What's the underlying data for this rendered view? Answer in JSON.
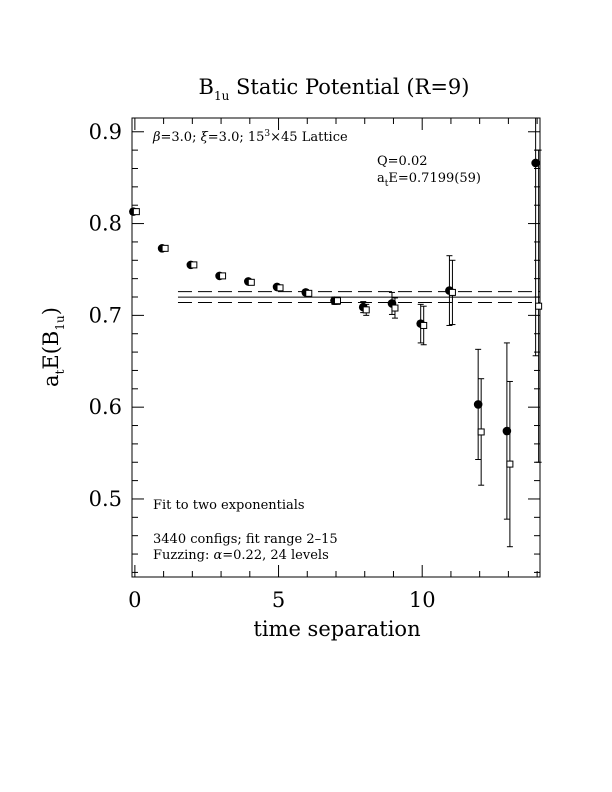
{
  "title": {
    "main": "B",
    "sub": "1u",
    "rest": " Static Potential (R=9)"
  },
  "ylabel": {
    "a": "a",
    "a_sub": "t",
    "mid": "E(B",
    "mid_sub": "1u",
    "end": ")"
  },
  "xlabel": "time separation",
  "annotations": {
    "lattice": {
      "beta": "β",
      "beta_text": "=3.0; ",
      "xi": "ξ",
      "xi_text": "=3.0; 15",
      "exp": "3",
      "rest": "×45 Lattice"
    },
    "q": "Q=0.02",
    "energy": {
      "a": "a",
      "sub": "t",
      "rest": "E=0.7199(59)"
    },
    "fit": "Fit to two exponentials",
    "configs": "3440 configs; fit range 2–15",
    "fuzz": {
      "pre": "Fuzzing: ",
      "alpha": "α",
      "rest": "=0.22, 24 levels"
    }
  },
  "chart_data": {
    "type": "scatter",
    "xlim": [
      -0.1,
      14.1
    ],
    "ylim": [
      0.415,
      0.915
    ],
    "x_ticks": [
      0,
      5,
      10
    ],
    "x_tick_labels": [
      "0",
      "5",
      "10"
    ],
    "y_ticks": [
      0.5,
      0.6,
      0.7,
      0.8,
      0.9
    ],
    "y_tick_labels": [
      "0.5",
      "0.6",
      "0.7",
      "0.8",
      "0.9"
    ],
    "fit": {
      "value": 0.7199,
      "error": 0.0059,
      "x_range": [
        1.5,
        14.1
      ]
    },
    "series": [
      {
        "marker": "filled-circle",
        "points": [
          {
            "x": 0,
            "y": 0.813,
            "err": 0.003
          },
          {
            "x": 1,
            "y": 0.773,
            "err": 0.002
          },
          {
            "x": 2,
            "y": 0.755,
            "err": 0.002
          },
          {
            "x": 3,
            "y": 0.743,
            "err": 0.002
          },
          {
            "x": 4,
            "y": 0.737,
            "err": 0.002
          },
          {
            "x": 5,
            "y": 0.731,
            "err": 0.002
          },
          {
            "x": 6,
            "y": 0.725,
            "err": 0.003
          },
          {
            "x": 7,
            "y": 0.716,
            "err": 0.004
          },
          {
            "x": 8,
            "y": 0.709,
            "err": 0.006
          },
          {
            "x": 9,
            "y": 0.713,
            "err": 0.012
          },
          {
            "x": 10,
            "y": 0.691,
            "err": 0.021
          },
          {
            "x": 11,
            "y": 0.727,
            "err": 0.038
          },
          {
            "x": 12,
            "y": 0.603,
            "err": 0.06
          },
          {
            "x": 13,
            "y": 0.574,
            "err": 0.096
          },
          {
            "x": 14,
            "y": 0.866,
            "err": 0.21
          }
        ]
      },
      {
        "marker": "open-square",
        "points": [
          {
            "x": 0,
            "y": 0.813,
            "err": 0.003
          },
          {
            "x": 1,
            "y": 0.773,
            "err": 0.002
          },
          {
            "x": 2,
            "y": 0.755,
            "err": 0.002
          },
          {
            "x": 3,
            "y": 0.743,
            "err": 0.002
          },
          {
            "x": 4,
            "y": 0.736,
            "err": 0.002
          },
          {
            "x": 5,
            "y": 0.73,
            "err": 0.002
          },
          {
            "x": 6,
            "y": 0.724,
            "err": 0.003
          },
          {
            "x": 7,
            "y": 0.716,
            "err": 0.004
          },
          {
            "x": 8,
            "y": 0.706,
            "err": 0.006
          },
          {
            "x": 9,
            "y": 0.708,
            "err": 0.011
          },
          {
            "x": 10,
            "y": 0.689,
            "err": 0.021
          },
          {
            "x": 11,
            "y": 0.725,
            "err": 0.035
          },
          {
            "x": 12,
            "y": 0.573,
            "err": 0.058
          },
          {
            "x": 13,
            "y": 0.538,
            "err": 0.09
          },
          {
            "x": 14,
            "y": 0.71,
            "err": 0.17
          }
        ]
      }
    ]
  }
}
